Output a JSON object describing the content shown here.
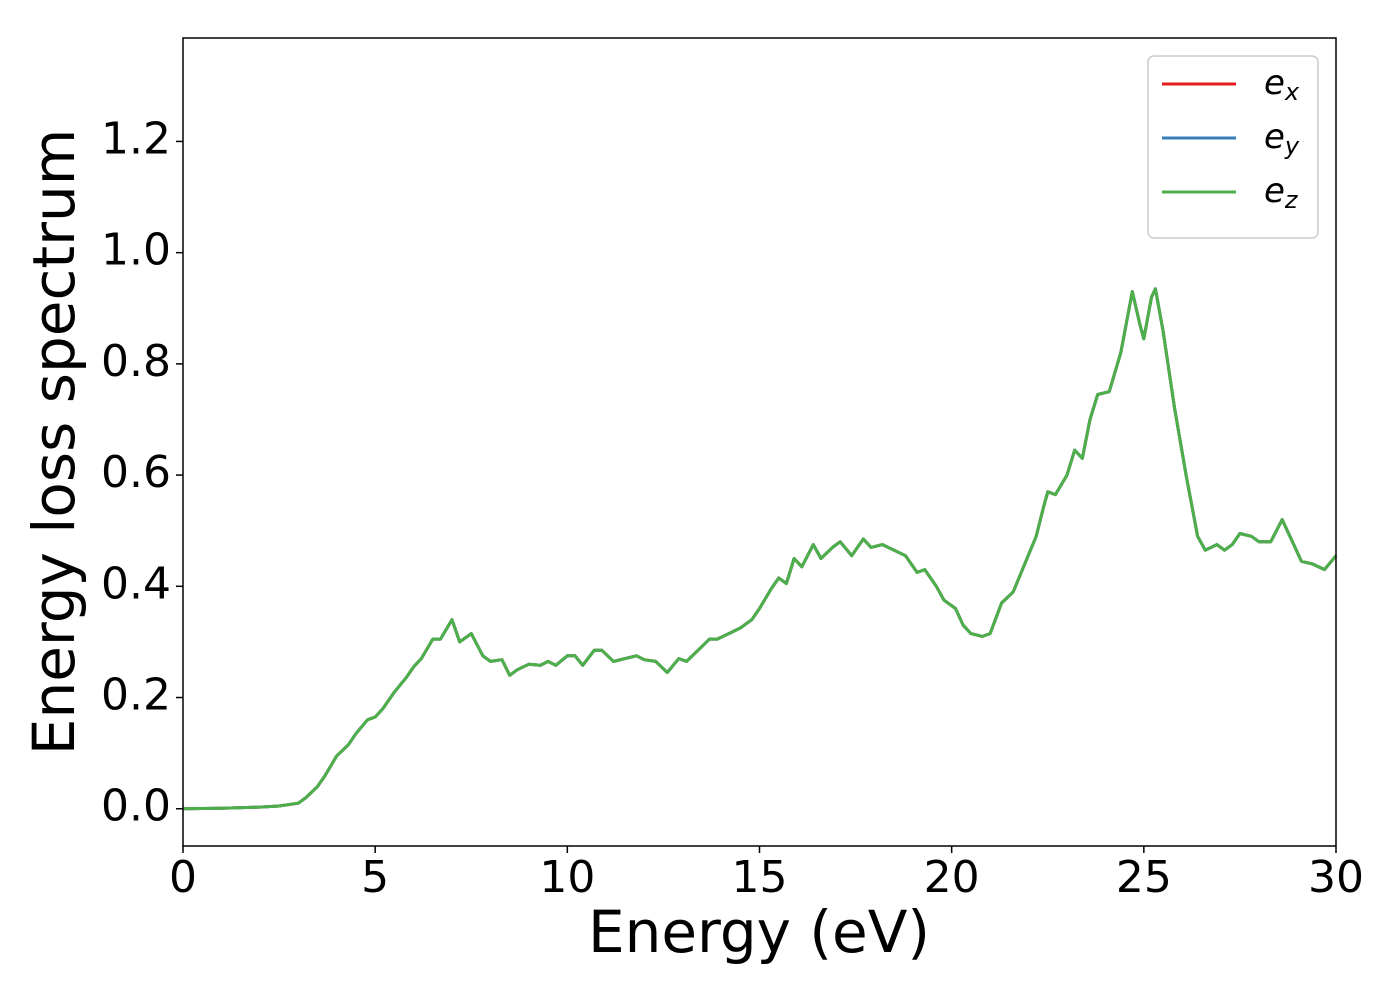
{
  "chart_data": {
    "type": "line",
    "xlabel": "Energy (eV)",
    "ylabel": "Energy loss spectrum",
    "x": [
      0,
      1,
      2,
      2.5,
      3,
      3.2,
      3.5,
      3.7,
      4,
      4.3,
      4.5,
      4.8,
      5,
      5.2,
      5.5,
      5.8,
      6,
      6.2,
      6.5,
      6.7,
      7,
      7.2,
      7.5,
      7.8,
      8,
      8.3,
      8.5,
      8.7,
      9,
      9.3,
      9.5,
      9.7,
      10,
      10.2,
      10.4,
      10.7,
      10.9,
      11.2,
      11.5,
      11.8,
      12,
      12.3,
      12.6,
      12.9,
      13.1,
      13.4,
      13.7,
      13.9,
      14.2,
      14.5,
      14.8,
      15,
      15.3,
      15.5,
      15.7,
      15.9,
      16.1,
      16.4,
      16.6,
      16.9,
      17.1,
      17.4,
      17.7,
      17.9,
      18.2,
      18.5,
      18.8,
      19.1,
      19.3,
      19.6,
      19.8,
      20.1,
      20.3,
      20.5,
      20.8,
      21,
      21.3,
      21.6,
      21.9,
      22.2,
      22.4,
      22.5,
      22.7,
      23,
      23.2,
      23.4,
      23.6,
      23.8,
      24.1,
      24.4,
      24.7,
      24.9,
      25,
      25.2,
      25.3,
      25.5,
      25.8,
      26.1,
      26.4,
      26.6,
      26.9,
      27.1,
      27.3,
      27.5,
      27.8,
      28,
      28.3,
      28.6,
      28.8,
      29.1,
      29.4,
      29.7,
      30
    ],
    "series": [
      {
        "name": "ex",
        "color": "#e41a1c",
        "values": [
          0,
          0.001,
          0.003,
          0.005,
          0.01,
          0.02,
          0.04,
          0.06,
          0.095,
          0.115,
          0.135,
          0.16,
          0.165,
          0.18,
          0.21,
          0.235,
          0.255,
          0.27,
          0.305,
          0.305,
          0.34,
          0.3,
          0.315,
          0.275,
          0.265,
          0.268,
          0.24,
          0.25,
          0.26,
          0.258,
          0.265,
          0.258,
          0.275,
          0.275,
          0.258,
          0.285,
          0.285,
          0.265,
          0.27,
          0.275,
          0.268,
          0.265,
          0.245,
          0.27,
          0.265,
          0.285,
          0.305,
          0.305,
          0.315,
          0.325,
          0.34,
          0.36,
          0.395,
          0.415,
          0.405,
          0.45,
          0.435,
          0.475,
          0.45,
          0.47,
          0.48,
          0.455,
          0.485,
          0.47,
          0.475,
          0.465,
          0.455,
          0.425,
          0.43,
          0.4,
          0.375,
          0.36,
          0.33,
          0.315,
          0.31,
          0.315,
          0.37,
          0.39,
          0.44,
          0.49,
          0.545,
          0.57,
          0.565,
          0.6,
          0.645,
          0.63,
          0.7,
          0.745,
          0.75,
          0.82,
          0.93,
          0.87,
          0.845,
          0.92,
          0.935,
          0.86,
          0.72,
          0.6,
          0.49,
          0.465,
          0.475,
          0.465,
          0.475,
          0.495,
          0.49,
          0.48,
          0.48,
          0.52,
          0.49,
          0.445,
          0.44,
          0.43,
          0.455
        ]
      },
      {
        "name": "ey",
        "color": "#377eb8",
        "values": [
          0,
          0.001,
          0.003,
          0.005,
          0.01,
          0.02,
          0.04,
          0.06,
          0.095,
          0.115,
          0.135,
          0.16,
          0.165,
          0.18,
          0.21,
          0.235,
          0.255,
          0.27,
          0.305,
          0.305,
          0.34,
          0.3,
          0.315,
          0.275,
          0.265,
          0.268,
          0.24,
          0.25,
          0.26,
          0.258,
          0.265,
          0.258,
          0.275,
          0.275,
          0.258,
          0.285,
          0.285,
          0.265,
          0.27,
          0.275,
          0.268,
          0.265,
          0.245,
          0.27,
          0.265,
          0.285,
          0.305,
          0.305,
          0.315,
          0.325,
          0.34,
          0.36,
          0.395,
          0.415,
          0.405,
          0.45,
          0.435,
          0.475,
          0.45,
          0.47,
          0.48,
          0.455,
          0.485,
          0.47,
          0.475,
          0.465,
          0.455,
          0.425,
          0.43,
          0.4,
          0.375,
          0.36,
          0.33,
          0.315,
          0.31,
          0.315,
          0.37,
          0.39,
          0.44,
          0.49,
          0.545,
          0.57,
          0.565,
          0.6,
          0.645,
          0.63,
          0.7,
          0.745,
          0.75,
          0.82,
          0.93,
          0.87,
          0.845,
          0.92,
          0.935,
          0.86,
          0.72,
          0.6,
          0.49,
          0.465,
          0.475,
          0.465,
          0.475,
          0.495,
          0.49,
          0.48,
          0.48,
          0.52,
          0.49,
          0.445,
          0.44,
          0.43,
          0.455
        ]
      },
      {
        "name": "ez",
        "color": "#4daf4a",
        "values": [
          0,
          0.001,
          0.003,
          0.005,
          0.01,
          0.02,
          0.04,
          0.06,
          0.095,
          0.115,
          0.135,
          0.16,
          0.165,
          0.18,
          0.21,
          0.235,
          0.255,
          0.27,
          0.305,
          0.305,
          0.34,
          0.3,
          0.315,
          0.275,
          0.265,
          0.268,
          0.24,
          0.25,
          0.26,
          0.258,
          0.265,
          0.258,
          0.275,
          0.275,
          0.258,
          0.285,
          0.285,
          0.265,
          0.27,
          0.275,
          0.268,
          0.265,
          0.245,
          0.27,
          0.265,
          0.285,
          0.305,
          0.305,
          0.315,
          0.325,
          0.34,
          0.36,
          0.395,
          0.415,
          0.405,
          0.45,
          0.435,
          0.475,
          0.45,
          0.47,
          0.48,
          0.455,
          0.485,
          0.47,
          0.475,
          0.465,
          0.455,
          0.425,
          0.43,
          0.4,
          0.375,
          0.36,
          0.33,
          0.315,
          0.31,
          0.315,
          0.37,
          0.39,
          0.44,
          0.49,
          0.545,
          0.57,
          0.565,
          0.6,
          0.645,
          0.63,
          0.7,
          0.745,
          0.75,
          0.82,
          0.93,
          0.87,
          0.845,
          0.92,
          0.935,
          0.86,
          0.72,
          0.6,
          0.49,
          0.465,
          0.475,
          0.465,
          0.475,
          0.495,
          0.49,
          0.48,
          0.48,
          0.52,
          0.49,
          0.445,
          0.44,
          0.43,
          0.455
        ]
      }
    ],
    "xlim": [
      0,
      30
    ],
    "xticks": [
      0,
      5,
      10,
      15,
      20,
      25,
      30
    ],
    "ylim": [
      -0.067,
      1.386
    ],
    "yticks": [
      {
        "value": 0,
        "label": "0.0"
      },
      0.2,
      0.4,
      0.6,
      0.8,
      {
        "value": 1,
        "label": "1.0"
      },
      1.2
    ],
    "grid": false,
    "legend": "upper right"
  }
}
